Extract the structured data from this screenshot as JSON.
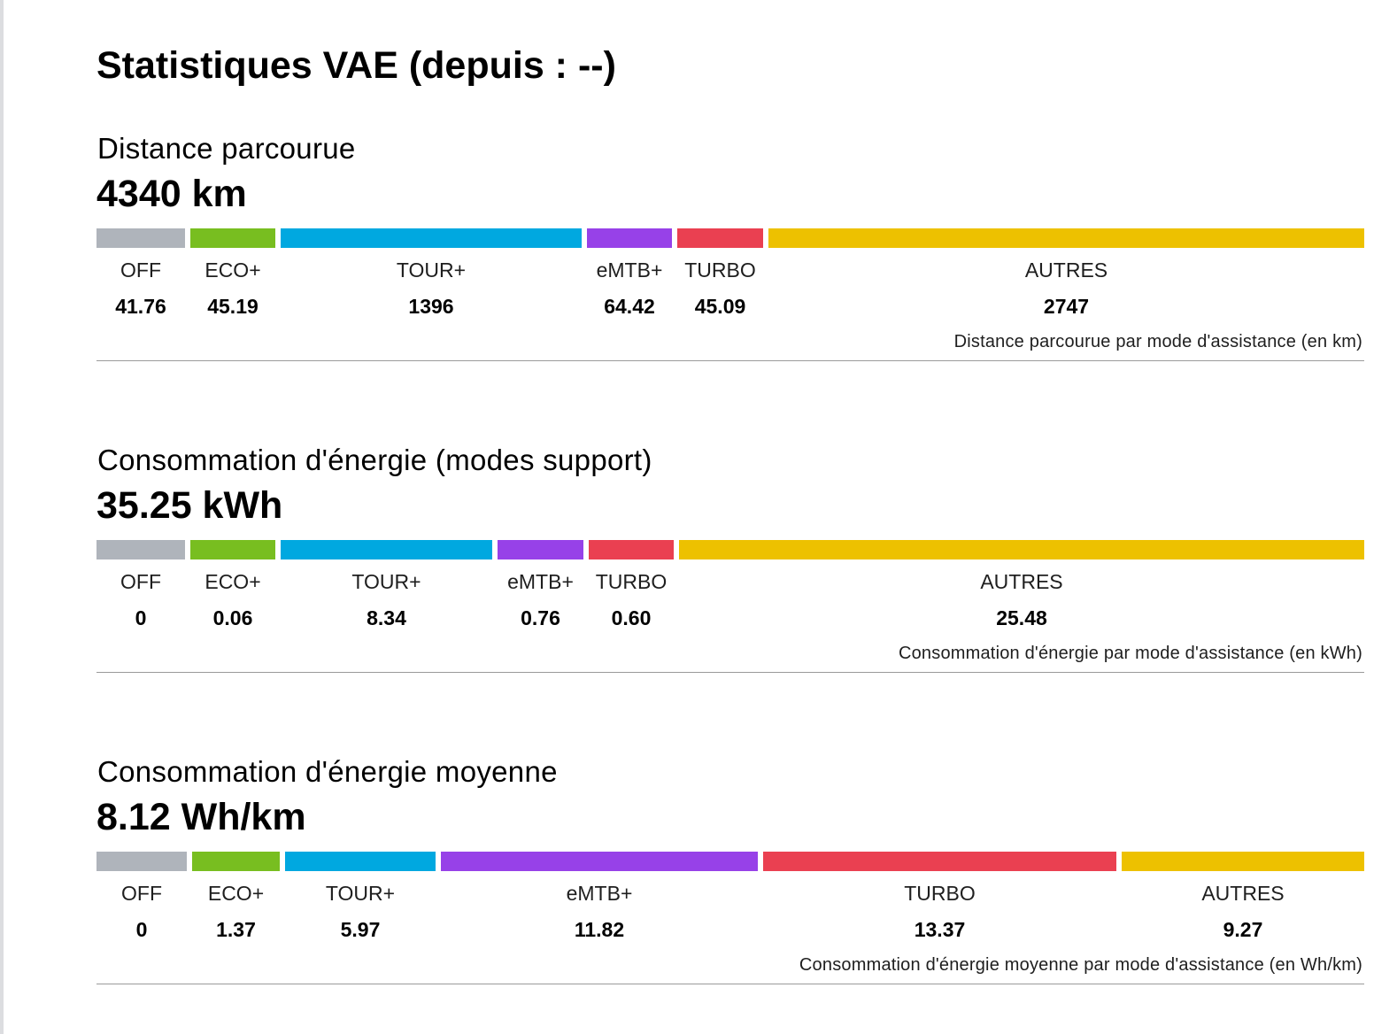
{
  "page": {
    "title": "Statistiques VAE (depuis : --)"
  },
  "colors": {
    "OFF": "#afb4bb",
    "ECO+": "#78be20",
    "TOUR+": "#00a8e0",
    "eMTB+": "#9741e8",
    "TURBO": "#ea4051",
    "AUTRES": "#edc100"
  },
  "sections": [
    {
      "title": "Distance parcourue",
      "total": "4340 km",
      "caption": "Distance parcourue par mode d'assistance (en km)",
      "modes": [
        {
          "label": "OFF",
          "value": "41.76"
        },
        {
          "label": "ECO+",
          "value": "45.19"
        },
        {
          "label": "TOUR+",
          "value": "1396"
        },
        {
          "label": "eMTB+",
          "value": "64.42"
        },
        {
          "label": "TURBO",
          "value": "45.09"
        },
        {
          "label": "AUTRES",
          "value": "2747"
        }
      ]
    },
    {
      "title": "Consommation d'énergie (modes support)",
      "total": "35.25 kWh",
      "caption": "Consommation d'énergie par mode d'assistance (en kWh)",
      "modes": [
        {
          "label": "OFF",
          "value": "0"
        },
        {
          "label": "ECO+",
          "value": "0.06"
        },
        {
          "label": "TOUR+",
          "value": "8.34"
        },
        {
          "label": "eMTB+",
          "value": "0.76"
        },
        {
          "label": "TURBO",
          "value": "0.60"
        },
        {
          "label": "AUTRES",
          "value": "25.48"
        }
      ]
    },
    {
      "title": "Consommation d'énergie moyenne",
      "total": "8.12 Wh/km",
      "caption": "Consommation d'énergie moyenne par mode d'assistance (en Wh/km)",
      "modes": [
        {
          "label": "OFF",
          "value": "0"
        },
        {
          "label": "ECO+",
          "value": "1.37"
        },
        {
          "label": "TOUR+",
          "value": "5.97"
        },
        {
          "label": "eMTB+",
          "value": "11.82"
        },
        {
          "label": "TURBO",
          "value": "13.37"
        },
        {
          "label": "AUTRES",
          "value": "9.27"
        }
      ]
    }
  ]
}
